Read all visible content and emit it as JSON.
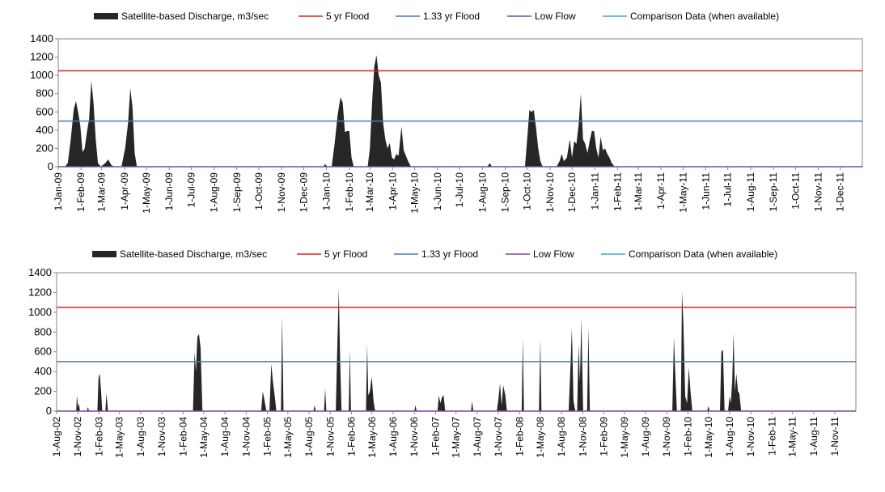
{
  "chart_data": [
    {
      "type": "area",
      "legend": [
        {
          "label": "Satellite-based Discharge, m3/sec",
          "color": "#262626",
          "kind": "area"
        },
        {
          "label": "5 yr Flood",
          "color": "#e3221e",
          "kind": "line"
        },
        {
          "label": "1.33 yr Flood",
          "color": "#4a7ab5",
          "kind": "line"
        },
        {
          "label": "Low Flow",
          "color": "#7a4a9c",
          "kind": "line"
        },
        {
          "label": "Comparison Data (when available)",
          "color": "#40a8c8",
          "kind": "line"
        }
      ],
      "ylim": [
        0,
        1400
      ],
      "yticks": [
        0,
        200,
        400,
        600,
        800,
        1000,
        1200,
        1400
      ],
      "xlim": [
        "2009-01-01",
        "2011-12-31"
      ],
      "xtick_labels": [
        "1-Jan-09",
        "1-Feb-09",
        "1-Mar-09",
        "1-Apr-09",
        "1-May-09",
        "1-Jun-09",
        "1-Jul-09",
        "1-Aug-09",
        "1-Sep-09",
        "1-Oct-09",
        "1-Nov-09",
        "1-Dec-09",
        "1-Jan-10",
        "1-Feb-10",
        "1-Mar-10",
        "1-Apr-10",
        "1-May-10",
        "1-Jun-10",
        "1-Jul-10",
        "1-Aug-10",
        "1-Sep-10",
        "1-Oct-10",
        "1-Nov-10",
        "1-Dec-10",
        "1-Jan-11",
        "1-Feb-11",
        "1-Mar-11",
        "1-Apr-11",
        "1-May-11",
        "1-Jun-11",
        "1-Jul-11",
        "1-Aug-11",
        "1-Sep-11",
        "1-Oct-11",
        "1-Nov-11",
        "1-Dec-11"
      ],
      "xtick_dates": [
        "2009-01-01",
        "2009-02-01",
        "2009-03-01",
        "2009-04-01",
        "2009-05-01",
        "2009-06-01",
        "2009-07-01",
        "2009-08-01",
        "2009-09-01",
        "2009-10-01",
        "2009-11-01",
        "2009-12-01",
        "2010-01-01",
        "2010-02-01",
        "2010-03-01",
        "2010-04-01",
        "2010-05-01",
        "2010-06-01",
        "2010-07-01",
        "2010-08-01",
        "2010-09-01",
        "2010-10-01",
        "2010-11-01",
        "2010-12-01",
        "2011-01-01",
        "2011-02-01",
        "2011-03-01",
        "2011-04-01",
        "2011-05-01",
        "2011-06-01",
        "2011-07-01",
        "2011-08-01",
        "2011-09-01",
        "2011-10-01",
        "2011-11-01",
        "2011-12-01"
      ],
      "thresholds": {
        "flood_5yr": 1050,
        "flood_1_33yr": 500,
        "low_flow": 0
      },
      "discharge": [
        [
          "2009-01-01",
          0
        ],
        [
          "2009-01-10",
          0
        ],
        [
          "2009-01-14",
          40
        ],
        [
          "2009-01-18",
          300
        ],
        [
          "2009-01-22",
          620
        ],
        [
          "2009-01-25",
          720
        ],
        [
          "2009-01-28",
          600
        ],
        [
          "2009-01-31",
          450
        ],
        [
          "2009-02-03",
          160
        ],
        [
          "2009-02-06",
          200
        ],
        [
          "2009-02-09",
          380
        ],
        [
          "2009-02-12",
          520
        ],
        [
          "2009-02-15",
          940
        ],
        [
          "2009-02-18",
          700
        ],
        [
          "2009-02-21",
          300
        ],
        [
          "2009-02-24",
          40
        ],
        [
          "2009-02-28",
          0
        ],
        [
          "2009-03-06",
          40
        ],
        [
          "2009-03-10",
          80
        ],
        [
          "2009-03-14",
          20
        ],
        [
          "2009-03-18",
          0
        ],
        [
          "2009-03-28",
          0
        ],
        [
          "2009-04-02",
          200
        ],
        [
          "2009-04-06",
          480
        ],
        [
          "2009-04-09",
          860
        ],
        [
          "2009-04-12",
          650
        ],
        [
          "2009-04-15",
          150
        ],
        [
          "2009-04-18",
          0
        ],
        [
          "2009-12-28",
          0
        ],
        [
          "2009-12-30",
          30
        ],
        [
          "2010-01-02",
          0
        ],
        [
          "2010-01-08",
          0
        ],
        [
          "2010-01-12",
          250
        ],
        [
          "2010-01-16",
          560
        ],
        [
          "2010-01-20",
          760
        ],
        [
          "2010-01-23",
          700
        ],
        [
          "2010-01-26",
          380
        ],
        [
          "2010-01-29",
          390
        ],
        [
          "2010-02-01",
          390
        ],
        [
          "2010-02-04",
          100
        ],
        [
          "2010-02-07",
          0
        ],
        [
          "2010-02-26",
          0
        ],
        [
          "2010-03-01",
          200
        ],
        [
          "2010-03-04",
          700
        ],
        [
          "2010-03-07",
          1100
        ],
        [
          "2010-03-10",
          1220
        ],
        [
          "2010-03-13",
          1000
        ],
        [
          "2010-03-16",
          920
        ],
        [
          "2010-03-19",
          480
        ],
        [
          "2010-03-22",
          300
        ],
        [
          "2010-03-25",
          200
        ],
        [
          "2010-03-28",
          260
        ],
        [
          "2010-03-31",
          100
        ],
        [
          "2010-04-03",
          80
        ],
        [
          "2010-04-06",
          140
        ],
        [
          "2010-04-09",
          120
        ],
        [
          "2010-04-13",
          440
        ],
        [
          "2010-04-16",
          180
        ],
        [
          "2010-04-19",
          120
        ],
        [
          "2010-04-22",
          60
        ],
        [
          "2010-04-26",
          0
        ],
        [
          "2010-08-08",
          0
        ],
        [
          "2010-08-11",
          40
        ],
        [
          "2010-08-14",
          0
        ],
        [
          "2010-09-28",
          0
        ],
        [
          "2010-10-01",
          300
        ],
        [
          "2010-10-04",
          620
        ],
        [
          "2010-10-07",
          600
        ],
        [
          "2010-10-10",
          620
        ],
        [
          "2010-10-13",
          430
        ],
        [
          "2010-10-16",
          200
        ],
        [
          "2010-10-19",
          60
        ],
        [
          "2010-10-22",
          0
        ],
        [
          "2010-11-10",
          0
        ],
        [
          "2010-11-14",
          60
        ],
        [
          "2010-11-17",
          140
        ],
        [
          "2010-11-20",
          60
        ],
        [
          "2010-11-24",
          100
        ],
        [
          "2010-11-28",
          300
        ],
        [
          "2010-12-01",
          100
        ],
        [
          "2010-12-04",
          280
        ],
        [
          "2010-12-07",
          250
        ],
        [
          "2010-12-10",
          460
        ],
        [
          "2010-12-13",
          800
        ],
        [
          "2010-12-16",
          300
        ],
        [
          "2010-12-19",
          250
        ],
        [
          "2010-12-22",
          150
        ],
        [
          "2010-12-25",
          280
        ],
        [
          "2010-12-28",
          390
        ],
        [
          "2010-12-31",
          390
        ],
        [
          "2011-01-03",
          200
        ],
        [
          "2011-01-06",
          100
        ],
        [
          "2011-01-09",
          330
        ],
        [
          "2011-01-12",
          180
        ],
        [
          "2011-01-15",
          200
        ],
        [
          "2011-01-18",
          140
        ],
        [
          "2011-01-21",
          100
        ],
        [
          "2011-01-24",
          40
        ],
        [
          "2011-01-28",
          0
        ],
        [
          "2011-12-31",
          0
        ]
      ]
    },
    {
      "type": "area",
      "legend": [
        {
          "label": "Satellite-based Discharge, m3/sec",
          "color": "#262626",
          "kind": "area"
        },
        {
          "label": "5 yr Flood",
          "color": "#e3221e",
          "kind": "line"
        },
        {
          "label": "1.33 yr Flood",
          "color": "#4a7ab5",
          "kind": "line"
        },
        {
          "label": "Low Flow",
          "color": "#7a4a9c",
          "kind": "line"
        },
        {
          "label": "Comparison Data (when available)",
          "color": "#40a8c8",
          "kind": "line"
        }
      ],
      "ylim": [
        0,
        1400
      ],
      "yticks": [
        0,
        200,
        400,
        600,
        800,
        1000,
        1200,
        1400
      ],
      "xlim": [
        "2002-08-01",
        "2012-01-31"
      ],
      "xtick_labels": [
        "1-Aug-02",
        "1-Nov-02",
        "1-Feb-03",
        "1-May-03",
        "1-Aug-03",
        "1-Nov-03",
        "1-Feb-04",
        "1-May-04",
        "1-Aug-04",
        "1-Nov-04",
        "1-Feb-05",
        "1-May-05",
        "1-Aug-05",
        "1-Nov-05",
        "1-Feb-06",
        "1-May-06",
        "1-Aug-06",
        "1-Nov-06",
        "1-Feb-07",
        "1-May-07",
        "1-Aug-07",
        "1-Nov-07",
        "1-Feb-08",
        "1-May-08",
        "1-Aug-08",
        "1-Nov-08",
        "1-Feb-09",
        "1-May-09",
        "1-Aug-09",
        "1-Nov-09",
        "1-Feb-10",
        "1-May-10",
        "1-Aug-10",
        "1-Nov-10",
        "1-Feb-11",
        "1-May-11",
        "1-Aug-11",
        "1-Nov-11"
      ],
      "xtick_dates": [
        "2002-08-01",
        "2002-11-01",
        "2003-02-01",
        "2003-05-01",
        "2003-08-01",
        "2003-11-01",
        "2004-02-01",
        "2004-05-01",
        "2004-08-01",
        "2004-11-01",
        "2005-02-01",
        "2005-05-01",
        "2005-08-01",
        "2005-11-01",
        "2006-02-01",
        "2006-05-01",
        "2006-08-01",
        "2006-11-01",
        "2007-02-01",
        "2007-05-01",
        "2007-08-01",
        "2007-11-01",
        "2008-02-01",
        "2008-05-01",
        "2008-08-01",
        "2008-11-01",
        "2009-02-01",
        "2009-05-01",
        "2009-08-01",
        "2009-11-01",
        "2010-02-01",
        "2010-05-01",
        "2010-08-01",
        "2010-11-01",
        "2011-02-01",
        "2011-05-01",
        "2011-08-01",
        "2011-11-01"
      ],
      "thresholds": {
        "flood_5yr": 1050,
        "flood_1_33yr": 500,
        "low_flow": 0
      },
      "discharge": [
        [
          "2002-08-01",
          0
        ],
        [
          "2002-10-25",
          0
        ],
        [
          "2002-10-28",
          160
        ],
        [
          "2002-11-02",
          40
        ],
        [
          "2002-11-06",
          80
        ],
        [
          "2002-11-10",
          0
        ],
        [
          "2002-12-10",
          0
        ],
        [
          "2002-12-15",
          40
        ],
        [
          "2002-12-20",
          0
        ],
        [
          "2003-01-25",
          0
        ],
        [
          "2003-01-30",
          340
        ],
        [
          "2003-02-04",
          380
        ],
        [
          "2003-02-10",
          200
        ],
        [
          "2003-02-15",
          0
        ],
        [
          "2003-03-01",
          0
        ],
        [
          "2003-03-05",
          180
        ],
        [
          "2003-03-12",
          0
        ],
        [
          "2004-03-15",
          0
        ],
        [
          "2004-03-22",
          600
        ],
        [
          "2004-03-28",
          400
        ],
        [
          "2004-04-03",
          750
        ],
        [
          "2004-04-10",
          780
        ],
        [
          "2004-04-17",
          640
        ],
        [
          "2004-04-25",
          0
        ],
        [
          "2005-01-05",
          0
        ],
        [
          "2005-01-12",
          200
        ],
        [
          "2005-01-20",
          100
        ],
        [
          "2005-01-28",
          0
        ],
        [
          "2005-02-10",
          0
        ],
        [
          "2005-02-18",
          480
        ],
        [
          "2005-02-25",
          300
        ],
        [
          "2005-03-05",
          150
        ],
        [
          "2005-03-12",
          0
        ],
        [
          "2005-04-01",
          0
        ],
        [
          "2005-04-06",
          960
        ],
        [
          "2005-04-12",
          0
        ],
        [
          "2005-08-20",
          0
        ],
        [
          "2005-08-25",
          60
        ],
        [
          "2005-08-30",
          0
        ],
        [
          "2005-10-05",
          0
        ],
        [
          "2005-10-10",
          230
        ],
        [
          "2005-10-15",
          0
        ],
        [
          "2005-11-25",
          0
        ],
        [
          "2005-12-02",
          700
        ],
        [
          "2005-12-08",
          1240
        ],
        [
          "2005-12-14",
          500
        ],
        [
          "2005-12-20",
          0
        ],
        [
          "2006-01-20",
          0
        ],
        [
          "2006-01-25",
          620
        ],
        [
          "2006-01-30",
          0
        ],
        [
          "2006-04-05",
          0
        ],
        [
          "2006-04-10",
          680
        ],
        [
          "2006-04-15",
          160
        ],
        [
          "2006-04-22",
          200
        ],
        [
          "2006-04-30",
          350
        ],
        [
          "2006-05-08",
          100
        ],
        [
          "2006-05-15",
          0
        ],
        [
          "2006-11-01",
          0
        ],
        [
          "2006-11-06",
          60
        ],
        [
          "2006-11-11",
          0
        ],
        [
          "2007-02-10",
          0
        ],
        [
          "2007-02-15",
          160
        ],
        [
          "2007-02-22",
          80
        ],
        [
          "2007-03-01",
          140
        ],
        [
          "2007-03-08",
          160
        ],
        [
          "2007-03-15",
          0
        ],
        [
          "2007-07-05",
          0
        ],
        [
          "2007-07-10",
          100
        ],
        [
          "2007-07-15",
          0
        ],
        [
          "2007-10-25",
          0
        ],
        [
          "2007-11-01",
          120
        ],
        [
          "2007-11-08",
          280
        ],
        [
          "2007-11-15",
          60
        ],
        [
          "2007-11-22",
          260
        ],
        [
          "2007-12-01",
          160
        ],
        [
          "2007-12-08",
          0
        ],
        [
          "2008-02-10",
          0
        ],
        [
          "2008-02-15",
          740
        ],
        [
          "2008-02-20",
          0
        ],
        [
          "2008-04-25",
          0
        ],
        [
          "2008-05-01",
          730
        ],
        [
          "2008-05-06",
          0
        ],
        [
          "2008-09-01",
          0
        ],
        [
          "2008-09-08",
          400
        ],
        [
          "2008-09-15",
          840
        ],
        [
          "2008-09-22",
          100
        ],
        [
          "2008-09-30",
          0
        ],
        [
          "2008-10-08",
          0
        ],
        [
          "2008-10-14",
          680
        ],
        [
          "2008-10-20",
          300
        ],
        [
          "2008-10-26",
          940
        ],
        [
          "2008-11-03",
          0
        ],
        [
          "2008-11-20",
          0
        ],
        [
          "2008-11-26",
          850
        ],
        [
          "2008-12-02",
          0
        ],
        [
          "2009-11-25",
          0
        ],
        [
          "2009-12-02",
          750
        ],
        [
          "2009-12-08",
          380
        ],
        [
          "2009-12-15",
          0
        ],
        [
          "2010-01-01",
          0
        ],
        [
          "2010-01-06",
          1210
        ],
        [
          "2010-01-12",
          900
        ],
        [
          "2010-01-20",
          150
        ],
        [
          "2010-01-28",
          80
        ],
        [
          "2010-02-05",
          440
        ],
        [
          "2010-02-12",
          200
        ],
        [
          "2010-02-20",
          0
        ],
        [
          "2010-04-25",
          0
        ],
        [
          "2010-05-01",
          50
        ],
        [
          "2010-05-06",
          0
        ],
        [
          "2010-06-20",
          0
        ],
        [
          "2010-06-26",
          600
        ],
        [
          "2010-07-03",
          620
        ],
        [
          "2010-07-10",
          0
        ],
        [
          "2010-07-25",
          0
        ],
        [
          "2010-08-01",
          150
        ],
        [
          "2010-08-06",
          80
        ],
        [
          "2010-08-12",
          300
        ],
        [
          "2010-08-18",
          790
        ],
        [
          "2010-08-24",
          200
        ],
        [
          "2010-08-30",
          380
        ],
        [
          "2010-09-06",
          200
        ],
        [
          "2010-09-12",
          180
        ],
        [
          "2010-09-20",
          0
        ],
        [
          "2012-01-31",
          0
        ]
      ]
    }
  ]
}
